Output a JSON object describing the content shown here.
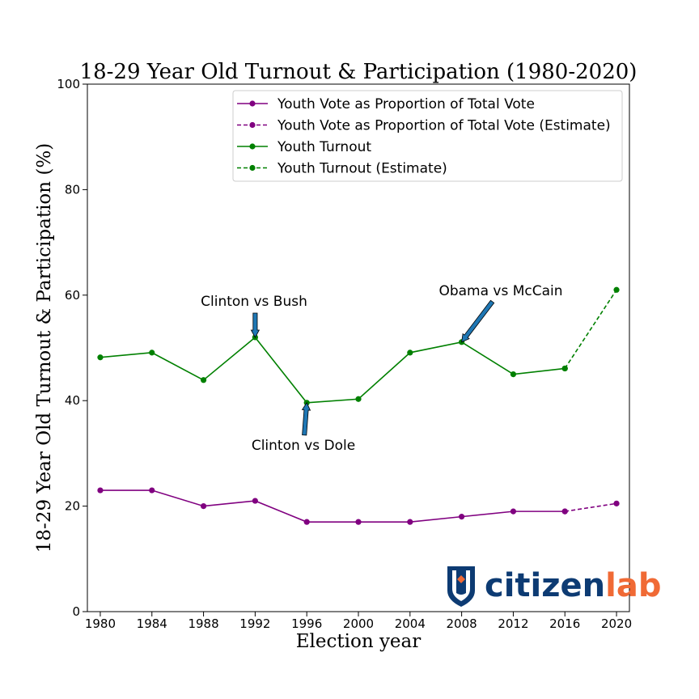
{
  "chart_data": {
    "type": "line",
    "title": "18-29 Year Old Turnout & Participation (1980-2020)",
    "xlabel": "Election year",
    "ylabel": "18-29 Year Old Turnout & Participation (%)",
    "xlim": [
      1979,
      2021
    ],
    "ylim": [
      0,
      100
    ],
    "x_ticks": [
      1980,
      1984,
      1988,
      1992,
      1996,
      2000,
      2004,
      2008,
      2012,
      2016,
      2020
    ],
    "y_ticks": [
      0,
      20,
      40,
      60,
      80,
      100
    ],
    "grid": false,
    "legend_position": "top-right",
    "series": [
      {
        "name": "Youth Vote as Proportion of Total Vote",
        "color": "#800080",
        "style": "solid",
        "x": [
          1980,
          1984,
          1988,
          1992,
          1996,
          2000,
          2004,
          2008,
          2012,
          2016
        ],
        "y": [
          23,
          23,
          20,
          21,
          17,
          17,
          17,
          18,
          19,
          19
        ]
      },
      {
        "name": "Youth Vote as Proportion of Total Vote (Estimate)",
        "color": "#800080",
        "style": "dashed",
        "x": [
          2016,
          2020
        ],
        "y": [
          19,
          20.5
        ]
      },
      {
        "name": "Youth Turnout",
        "color": "#008000",
        "style": "solid",
        "x": [
          1980,
          1984,
          1988,
          1992,
          1996,
          2000,
          2004,
          2008,
          2012,
          2016
        ],
        "y": [
          48.2,
          49.1,
          43.9,
          52,
          39.6,
          40.3,
          49.1,
          51.1,
          45,
          46.1
        ]
      },
      {
        "name": "Youth Turnout (Estimate)",
        "color": "#008000",
        "style": "dashed",
        "x": [
          2016,
          2020
        ],
        "y": [
          46.1,
          61
        ]
      }
    ],
    "annotations": [
      {
        "text": "Clinton vs Bush",
        "point": [
          1992,
          52
        ]
      },
      {
        "text": "Clinton vs Dole",
        "point": [
          1996,
          39.6
        ]
      },
      {
        "text": "Obama vs McCain",
        "point": [
          2008,
          51.1
        ]
      }
    ]
  },
  "logo": {
    "part1": "citizen",
    "part2": "lab",
    "color1": "#0d3b73",
    "color2": "#f06a35",
    "icon": "shield-icon"
  }
}
